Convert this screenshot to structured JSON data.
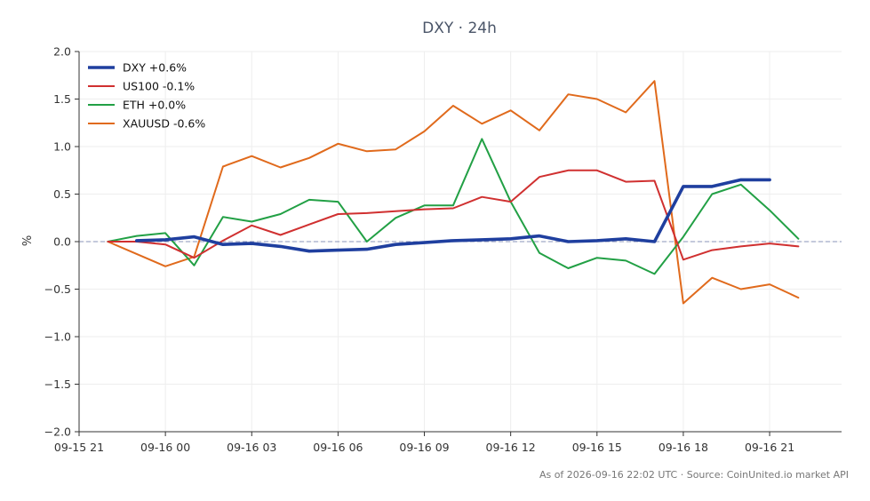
{
  "chart_data": {
    "type": "line",
    "title": "DXY · 24h",
    "ylabel": "%",
    "ylim": [
      -2.0,
      2.0
    ],
    "yticks": [
      -2.0,
      -1.5,
      -1.0,
      -0.5,
      0.0,
      0.5,
      1.0,
      1.5,
      2.0
    ],
    "ytick_labels": [
      "−2.0",
      "−1.5",
      "−1.0",
      "−0.5",
      "0.0",
      "0.5",
      "1.0",
      "1.5",
      "2.0"
    ],
    "xlim": [
      0,
      26.5
    ],
    "xticks": [
      0,
      3,
      6,
      9,
      12,
      15,
      18,
      21,
      24
    ],
    "xtick_labels": [
      "09-15 21",
      "09-16 00",
      "09-16 03",
      "09-16 06",
      "09-16 09",
      "09-16 12",
      "09-16 15",
      "09-16 18",
      "09-16 21"
    ],
    "grid": true,
    "baseline": 0,
    "legend_position": "top-left",
    "series": [
      {
        "name": "DXY +0.6%",
        "color": "#1f3f9f",
        "x": [
          2,
          3,
          4,
          5,
          6,
          7,
          8,
          9,
          10,
          11,
          12,
          13,
          14,
          15,
          16,
          17,
          18,
          19,
          20,
          21,
          22,
          23,
          24
        ],
        "values": [
          0.01,
          0.02,
          0.05,
          -0.03,
          -0.02,
          -0.05,
          -0.1,
          -0.09,
          -0.08,
          -0.03,
          -0.01,
          0.01,
          0.02,
          0.03,
          0.06,
          0.0,
          0.01,
          0.03,
          0.0,
          0.58,
          0.58,
          0.65,
          0.65
        ]
      },
      {
        "name": "US100 -0.1%",
        "color": "#d03030",
        "x": [
          1,
          2,
          3,
          4,
          5,
          6,
          7,
          8,
          9,
          10,
          11,
          12,
          13,
          14,
          15,
          16,
          17,
          18,
          19,
          20,
          21,
          22,
          23,
          24,
          25
        ],
        "values": [
          0.0,
          0.0,
          -0.03,
          -0.17,
          0.01,
          0.17,
          0.07,
          0.18,
          0.29,
          0.3,
          0.32,
          0.34,
          0.35,
          0.47,
          0.42,
          0.68,
          0.75,
          0.75,
          0.63,
          0.64,
          -0.19,
          -0.09,
          -0.05,
          -0.02,
          -0.05
        ]
      },
      {
        "name": "ETH +0.0%",
        "color": "#22a045",
        "x": [
          1,
          2,
          3,
          4,
          5,
          6,
          7,
          8,
          9,
          10,
          11,
          12,
          13,
          14,
          15,
          16,
          17,
          18,
          19,
          20,
          21,
          22,
          23,
          24,
          25
        ],
        "values": [
          0.0,
          0.06,
          0.09,
          -0.25,
          0.26,
          0.21,
          0.29,
          0.44,
          0.42,
          0.0,
          0.25,
          0.38,
          0.38,
          1.08,
          0.42,
          -0.12,
          -0.28,
          -0.17,
          -0.2,
          -0.34,
          0.05,
          0.5,
          0.6,
          0.33,
          0.03
        ]
      },
      {
        "name": "XAUUSD -0.6%",
        "color": "#e06a1c",
        "x": [
          1,
          2,
          3,
          4,
          5,
          6,
          7,
          8,
          9,
          10,
          11,
          12,
          13,
          14,
          15,
          16,
          17,
          18,
          19,
          20,
          21,
          22,
          23,
          24,
          25
        ],
        "values": [
          0.0,
          -0.13,
          -0.26,
          -0.16,
          0.79,
          0.9,
          0.78,
          0.88,
          1.03,
          0.95,
          0.97,
          1.16,
          1.43,
          1.24,
          1.38,
          1.17,
          1.55,
          1.5,
          1.36,
          1.69,
          -0.65,
          -0.38,
          -0.5,
          -0.45,
          -0.59
        ]
      }
    ],
    "source_note": "As of 2026-09-16 22:02 UTC · Source: CoinUnited.io market API"
  },
  "colors": {
    "grid": "#eeeeee",
    "axis": "#333333",
    "baseline": "#8a93b8"
  }
}
